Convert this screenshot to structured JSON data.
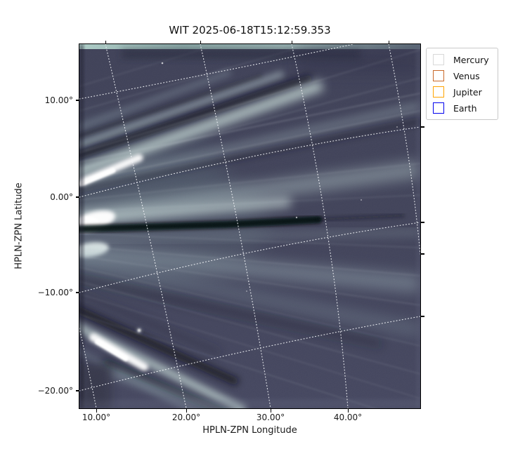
{
  "figure": {
    "title": "WIT 2025-06-18T15:12:59.353"
  },
  "plot": {
    "xlabel": "HPLN-ZPN Longitude",
    "ylabel": "HPLN-ZPN Latitude",
    "x_tick_labels": [
      "10.00°",
      "20.00°",
      "30.00°",
      "40.00°"
    ],
    "y_tick_labels": [
      "10.00°",
      "0.00°",
      "−10.00°",
      "−20.00°"
    ],
    "frame_color": "#000000",
    "grid_color": "#f0f2f6"
  },
  "legend": {
    "items": [
      {
        "label": "Mercury",
        "color": "#d9d9d9"
      },
      {
        "label": "Venus",
        "color": "#c8682a"
      },
      {
        "label": "Jupiter",
        "color": "#ffa400"
      },
      {
        "label": "Earth",
        "color": "#0000ee"
      }
    ]
  },
  "chart_data": {
    "type": "heatmap",
    "subtype": "white-light heliospheric image (WISPR WIT frame)",
    "title": "WIT 2025-06-18T15:12:59.353",
    "xlabel": "HPLN-ZPN Longitude",
    "ylabel": "HPLN-ZPN Latitude",
    "x_ticks_deg": [
      10,
      20,
      30,
      40
    ],
    "y_ticks_deg": [
      10,
      0,
      -10,
      -20
    ],
    "xlim_deg": [
      8.1,
      49.4
    ],
    "ylim_deg": [
      -21.8,
      15.7
    ],
    "projection": "HPLN-ZPN (helioprojective zenithal polynomial); grid lines tilted ~12° and slightly curved",
    "grid": {
      "visible": true,
      "style": "dotted",
      "color": "#ffffff",
      "longitude_lines_deg": [
        10,
        20,
        30,
        40,
        50
      ],
      "latitude_lines_deg": [
        10,
        0,
        -10,
        -20
      ]
    },
    "legend": {
      "position": "outside upper-right",
      "entries": [
        "Mercury",
        "Venus",
        "Jupiter",
        "Earth"
      ],
      "marker_style": "unfilled squares",
      "markers_visible_in_field": false
    },
    "palette": {
      "background": "#3e4057",
      "streamer_bright": "#edf7f3",
      "streamer_mid": "#9fb4bb",
      "dark_lane": "#0a0c13",
      "top_edge_strip": "#b7dad1"
    },
    "features": [
      {
        "name": "upper-streamer-fan",
        "description": "bright solar-wind rays fanning from the sunward (left) edge toward the upper right, interleaved with dark lanes",
        "left_edge_lat_deg": [
          0,
          6
        ],
        "brightest_knot": {
          "lon_deg": 8.5,
          "lat_deg": 2
        }
      },
      {
        "name": "central-streamer",
        "description": "brightest white knot at the left edge with a broad fan spreading right and a sharp black lane just below it",
        "brightest_knot": {
          "lon_deg": 8.5,
          "lat_deg": -2.5
        },
        "dark_lane_lat_deg": -3.5
      },
      {
        "name": "lower-streamer",
        "description": "bright streak slanting toward the lower right in the bottom-left corner with dark lanes on both sides",
        "core": {
          "lon_deg": 10.5,
          "lat_deg": -16
        }
      },
      {
        "name": "top-edge-strip",
        "description": "thin bright teal band along the very top edge of the image"
      },
      {
        "name": "point-source",
        "description": "small bright dot (star/planet) inside the field",
        "lon_deg": 16.5,
        "lat_deg": -15
      },
      {
        "name": "faint-rays",
        "description": "many thin faint rays radiating across the whole field from the left edge"
      }
    ]
  }
}
